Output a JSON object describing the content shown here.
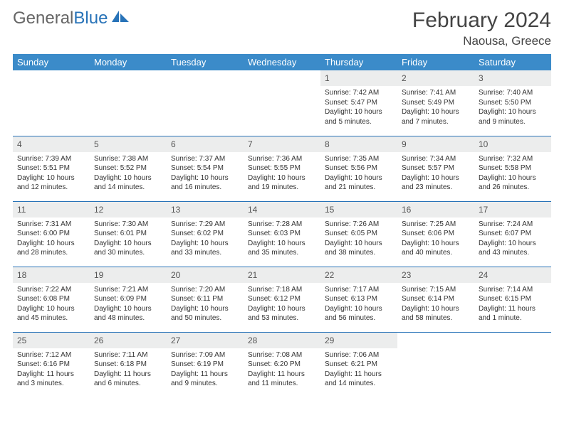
{
  "brand": {
    "text1": "General",
    "text2": "Blue",
    "icon_color": "#2873b8"
  },
  "title": "February 2024",
  "location": "Naousa, Greece",
  "colors": {
    "header_bg": "#3b8bc9",
    "daynum_bg": "#eceded",
    "row_border": "#2873b8"
  },
  "day_headers": [
    "Sunday",
    "Monday",
    "Tuesday",
    "Wednesday",
    "Thursday",
    "Friday",
    "Saturday"
  ],
  "weeks": [
    [
      null,
      null,
      null,
      null,
      {
        "n": "1",
        "sunrise": "7:42 AM",
        "sunset": "5:47 PM",
        "daylight": "10 hours and 5 minutes."
      },
      {
        "n": "2",
        "sunrise": "7:41 AM",
        "sunset": "5:49 PM",
        "daylight": "10 hours and 7 minutes."
      },
      {
        "n": "3",
        "sunrise": "7:40 AM",
        "sunset": "5:50 PM",
        "daylight": "10 hours and 9 minutes."
      }
    ],
    [
      {
        "n": "4",
        "sunrise": "7:39 AM",
        "sunset": "5:51 PM",
        "daylight": "10 hours and 12 minutes."
      },
      {
        "n": "5",
        "sunrise": "7:38 AM",
        "sunset": "5:52 PM",
        "daylight": "10 hours and 14 minutes."
      },
      {
        "n": "6",
        "sunrise": "7:37 AM",
        "sunset": "5:54 PM",
        "daylight": "10 hours and 16 minutes."
      },
      {
        "n": "7",
        "sunrise": "7:36 AM",
        "sunset": "5:55 PM",
        "daylight": "10 hours and 19 minutes."
      },
      {
        "n": "8",
        "sunrise": "7:35 AM",
        "sunset": "5:56 PM",
        "daylight": "10 hours and 21 minutes."
      },
      {
        "n": "9",
        "sunrise": "7:34 AM",
        "sunset": "5:57 PM",
        "daylight": "10 hours and 23 minutes."
      },
      {
        "n": "10",
        "sunrise": "7:32 AM",
        "sunset": "5:58 PM",
        "daylight": "10 hours and 26 minutes."
      }
    ],
    [
      {
        "n": "11",
        "sunrise": "7:31 AM",
        "sunset": "6:00 PM",
        "daylight": "10 hours and 28 minutes."
      },
      {
        "n": "12",
        "sunrise": "7:30 AM",
        "sunset": "6:01 PM",
        "daylight": "10 hours and 30 minutes."
      },
      {
        "n": "13",
        "sunrise": "7:29 AM",
        "sunset": "6:02 PM",
        "daylight": "10 hours and 33 minutes."
      },
      {
        "n": "14",
        "sunrise": "7:28 AM",
        "sunset": "6:03 PM",
        "daylight": "10 hours and 35 minutes."
      },
      {
        "n": "15",
        "sunrise": "7:26 AM",
        "sunset": "6:05 PM",
        "daylight": "10 hours and 38 minutes."
      },
      {
        "n": "16",
        "sunrise": "7:25 AM",
        "sunset": "6:06 PM",
        "daylight": "10 hours and 40 minutes."
      },
      {
        "n": "17",
        "sunrise": "7:24 AM",
        "sunset": "6:07 PM",
        "daylight": "10 hours and 43 minutes."
      }
    ],
    [
      {
        "n": "18",
        "sunrise": "7:22 AM",
        "sunset": "6:08 PM",
        "daylight": "10 hours and 45 minutes."
      },
      {
        "n": "19",
        "sunrise": "7:21 AM",
        "sunset": "6:09 PM",
        "daylight": "10 hours and 48 minutes."
      },
      {
        "n": "20",
        "sunrise": "7:20 AM",
        "sunset": "6:11 PM",
        "daylight": "10 hours and 50 minutes."
      },
      {
        "n": "21",
        "sunrise": "7:18 AM",
        "sunset": "6:12 PM",
        "daylight": "10 hours and 53 minutes."
      },
      {
        "n": "22",
        "sunrise": "7:17 AM",
        "sunset": "6:13 PM",
        "daylight": "10 hours and 56 minutes."
      },
      {
        "n": "23",
        "sunrise": "7:15 AM",
        "sunset": "6:14 PM",
        "daylight": "10 hours and 58 minutes."
      },
      {
        "n": "24",
        "sunrise": "7:14 AM",
        "sunset": "6:15 PM",
        "daylight": "11 hours and 1 minute."
      }
    ],
    [
      {
        "n": "25",
        "sunrise": "7:12 AM",
        "sunset": "6:16 PM",
        "daylight": "11 hours and 3 minutes."
      },
      {
        "n": "26",
        "sunrise": "7:11 AM",
        "sunset": "6:18 PM",
        "daylight": "11 hours and 6 minutes."
      },
      {
        "n": "27",
        "sunrise": "7:09 AM",
        "sunset": "6:19 PM",
        "daylight": "11 hours and 9 minutes."
      },
      {
        "n": "28",
        "sunrise": "7:08 AM",
        "sunset": "6:20 PM",
        "daylight": "11 hours and 11 minutes."
      },
      {
        "n": "29",
        "sunrise": "7:06 AM",
        "sunset": "6:21 PM",
        "daylight": "11 hours and 14 minutes."
      },
      null,
      null
    ]
  ],
  "labels": {
    "sunrise": "Sunrise:",
    "sunset": "Sunset:",
    "daylight": "Daylight:"
  }
}
